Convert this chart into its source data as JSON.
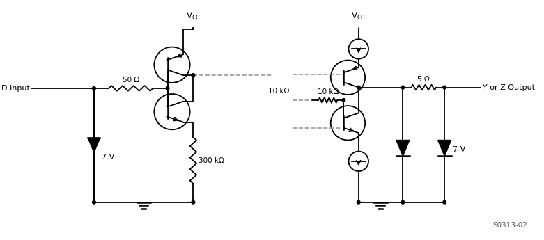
{
  "bg_color": "#ffffff",
  "line_color": "#000000",
  "fig_width": 7.81,
  "fig_height": 3.45,
  "dpi": 100,
  "watermark": "S0313-02",
  "left_vcc_label": "V$_{\\rm CC}$",
  "right_vcc_label": "V$_{\\rm CC}$",
  "label_50": "50 Ω",
  "label_300k": "300 kΩ",
  "label_5": "5 Ω",
  "label_10k": "10 kΩ",
  "label_7v_left": "7 V",
  "label_7v_right": "7 V",
  "label_input": "D Input",
  "label_output": "Y or Z Output"
}
